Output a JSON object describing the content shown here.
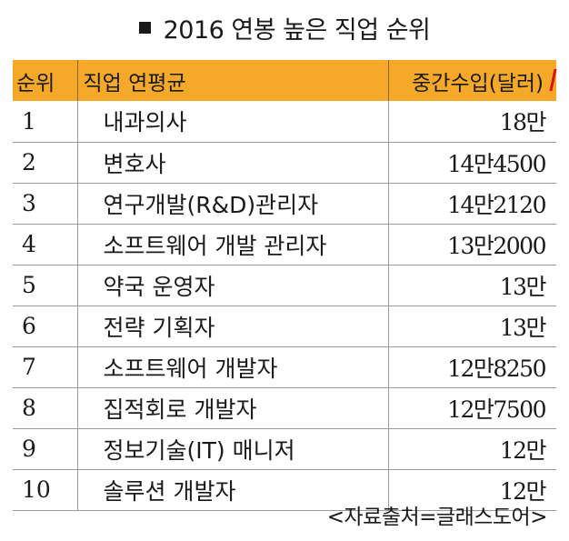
{
  "title": "2016 연봉 높은 직업 순위",
  "source": "<자료출처=글래스도어>",
  "chart_data": {
    "type": "table",
    "columns": [
      "순위",
      "직업 연평균",
      "중간수입(달러)"
    ],
    "rows": [
      {
        "rank": "1",
        "job": "내과의사",
        "salary": "18만"
      },
      {
        "rank": "2",
        "job": "변호사",
        "salary": "14만4500"
      },
      {
        "rank": "3",
        "job": "연구개발(R&D)관리자",
        "salary": "14만2120"
      },
      {
        "rank": "4",
        "job": "소프트웨어 개발 관리자",
        "salary": "13만2000"
      },
      {
        "rank": "5",
        "job": "약국 운영자",
        "salary": "13만"
      },
      {
        "rank": "6",
        "job": "전략 기획자",
        "salary": "13만"
      },
      {
        "rank": "7",
        "job": "소프트웨어 개발자",
        "salary": "12만8250"
      },
      {
        "rank": "8",
        "job": "집적회로 개발자",
        "salary": "12만7500"
      },
      {
        "rank": "9",
        "job": "정보기술(IT) 매니저",
        "salary": "12만"
      },
      {
        "rank": "10",
        "job": "솔루션 개발자",
        "salary": "12만"
      }
    ],
    "colors": {
      "header_bg": "#f6a928",
      "grid": "#9a9a9a"
    }
  }
}
